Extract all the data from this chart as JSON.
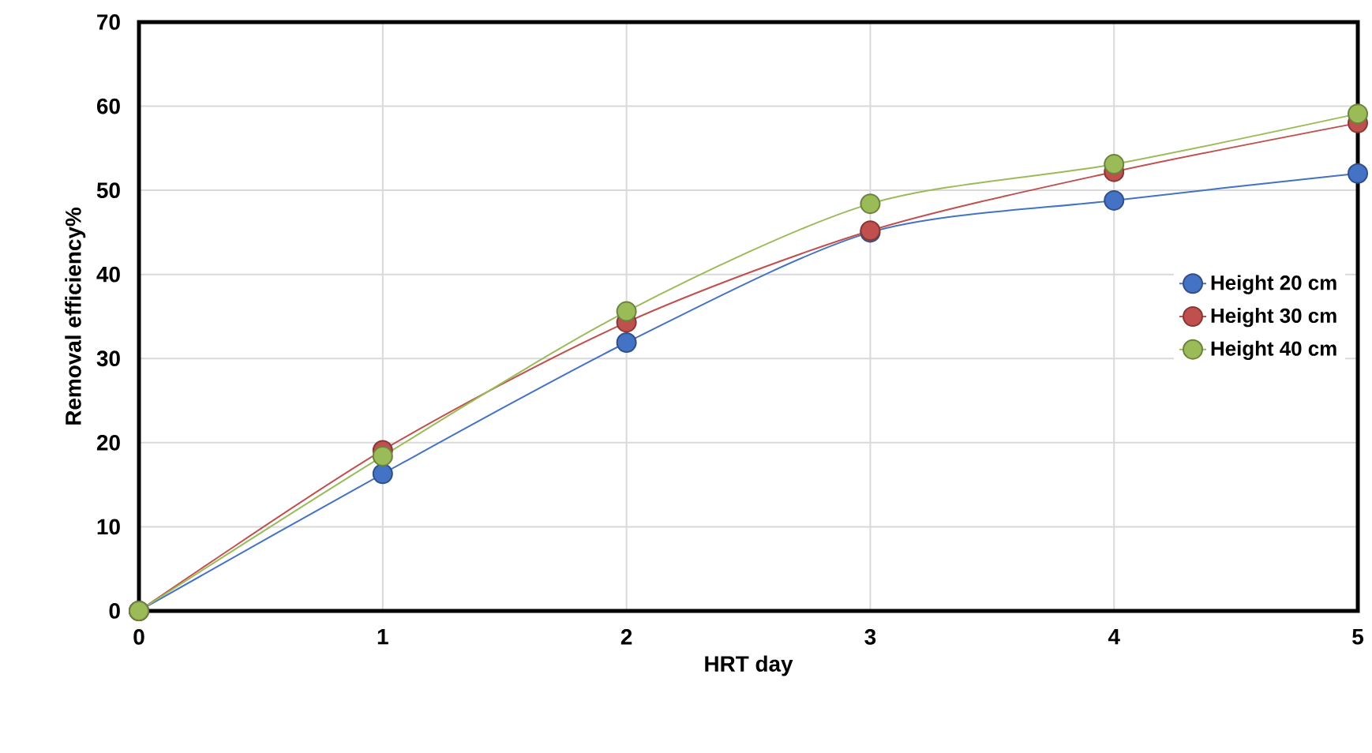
{
  "chart_data": {
    "type": "line",
    "xlabel": "HRT day",
    "ylabel": "Removal efficiency%",
    "x": [
      0,
      1,
      2,
      3,
      4,
      5
    ],
    "series": [
      {
        "name": "Height 20 cm",
        "color": "#4472c4",
        "values": [
          0,
          16.3,
          31.9,
          45,
          48.8,
          52
        ]
      },
      {
        "name": "Height 30 cm",
        "color": "#c0504d",
        "values": [
          0,
          19.1,
          34.3,
          45.2,
          52.2,
          58
        ]
      },
      {
        "name": "Height 40 cm",
        "color": "#9bbb59",
        "values": [
          0,
          18.4,
          35.6,
          48.4,
          53.1,
          59.1
        ]
      }
    ],
    "xlim": [
      0,
      5
    ],
    "ylim": [
      0,
      70
    ],
    "xticks": [
      0,
      1,
      2,
      3,
      4,
      5
    ],
    "yticks": [
      0,
      10,
      20,
      30,
      40,
      50,
      60,
      70
    ],
    "grid": true,
    "legend": "right",
    "marker": "circle",
    "line_style": "solid"
  }
}
